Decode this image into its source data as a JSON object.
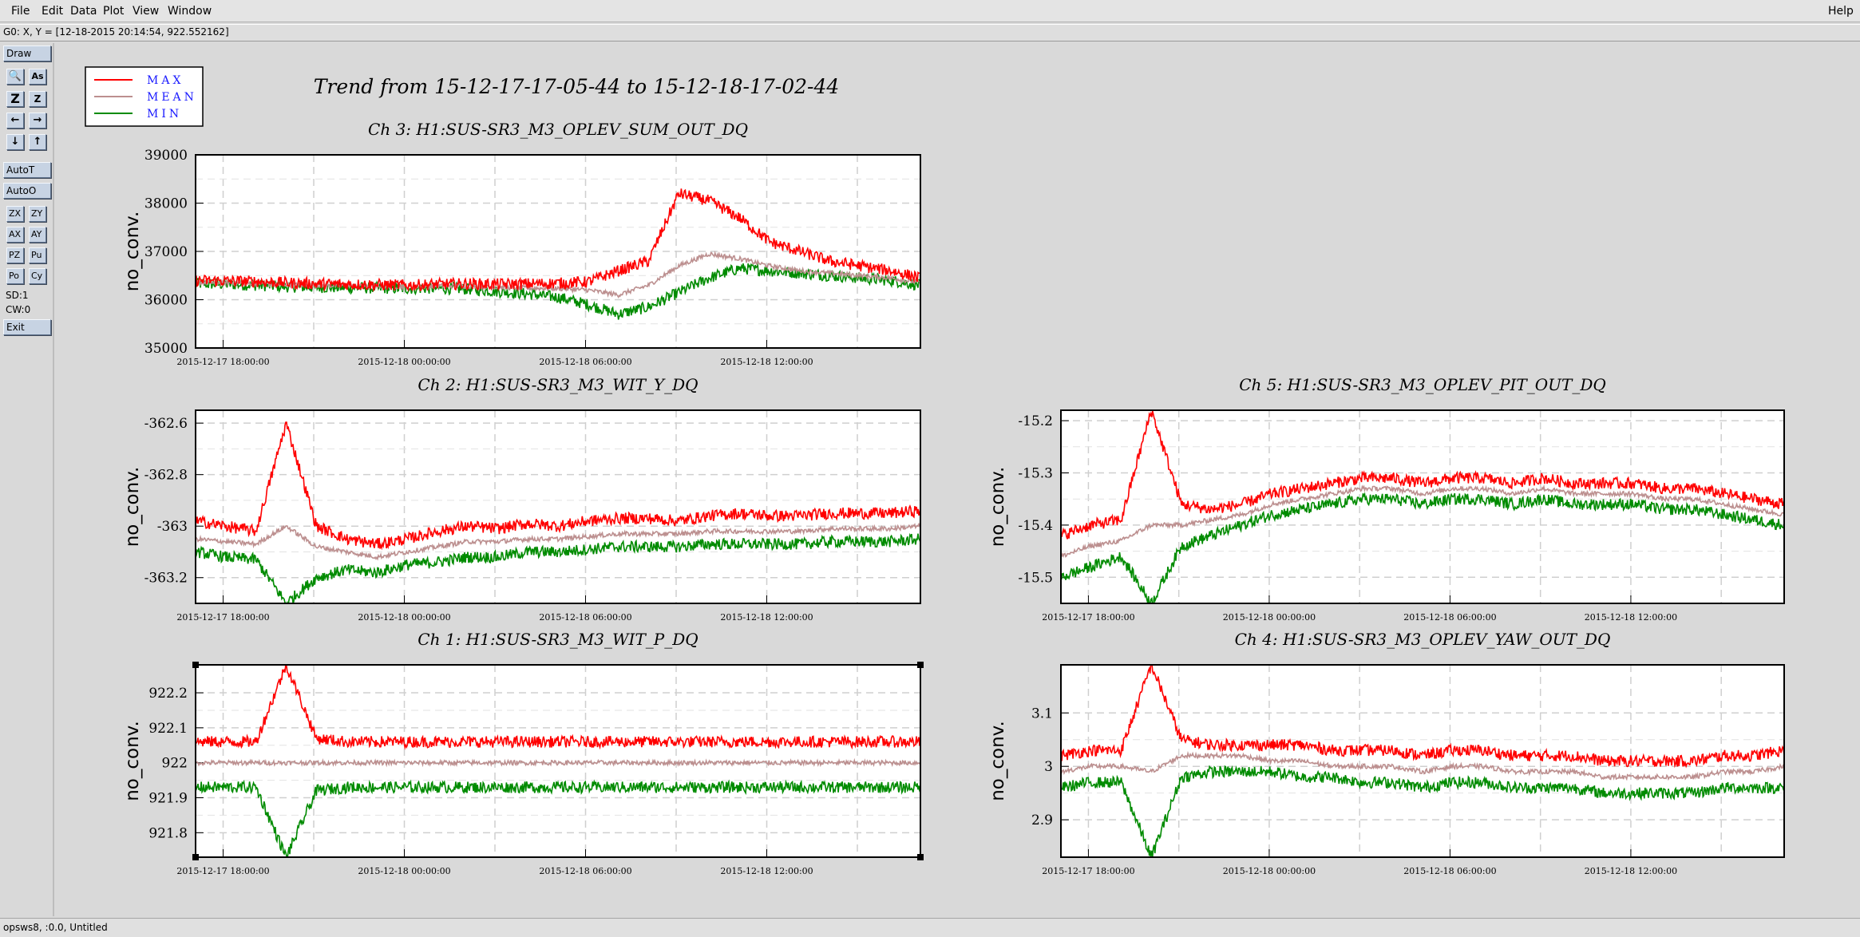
{
  "menu": {
    "items": [
      "File",
      "Edit",
      "Data",
      "Plot",
      "View",
      "Window"
    ],
    "help": "Help"
  },
  "coord_readout": "G0: X, Y = [12-18-2015 20:14:54, 922.552162]",
  "toolbar": {
    "draw": "Draw",
    "autot": "AutoT",
    "autoo": "AutoO",
    "zx": "ZX",
    "zy": "ZY",
    "ax": "AX",
    "ay": "AY",
    "pz": "PZ",
    "pu": "Pu",
    "po": "Po",
    "cy": "Cy",
    "sd": "SD:1",
    "cw": "CW:0",
    "exit": "Exit",
    "icon_zoom": "🔍",
    "icon_as": "As",
    "icon_zin": "Z",
    "icon_zout": "Z",
    "icon_left": "←",
    "icon_right": "→",
    "icon_down": "↓",
    "icon_up": "↑"
  },
  "status": "opsws8, :0.0, Untitled",
  "main_title": "Trend from 15-12-17-17-05-44 to 15-12-18-17-02-44",
  "colors": {
    "max": "#ff0000",
    "mean": "#bc8f8f",
    "min": "#008b00",
    "legend_text": "#1a1aff"
  },
  "legend": [
    "MAX",
    "MEAN",
    "MIN"
  ],
  "chart_data": [
    {
      "type": "line",
      "title": "Ch 3: H1:SUS-SR3_M3_OPLEV_SUM_OUT_DQ",
      "ylabel": "no_conv.",
      "x_ticks": [
        "2015-12-17 18:00:00",
        "2015-12-18 00:00:00",
        "2015-12-18 06:00:00",
        "2015-12-18 12:00:00"
      ],
      "y_ticks": [
        "39000",
        "38000",
        "37000",
        "36000",
        "35000"
      ],
      "ylim": [
        35000,
        39000
      ],
      "grid": true,
      "legend_position": "top-left",
      "series": [
        {
          "name": "MAX",
          "x": [
            0,
            1,
            2,
            3,
            4,
            5,
            6,
            7,
            8,
            9,
            10,
            11,
            12,
            13,
            14,
            15,
            16,
            17,
            18,
            19,
            20,
            21,
            22,
            23,
            24
          ],
          "values": [
            36400,
            36390,
            36380,
            36350,
            36330,
            36320,
            36310,
            36300,
            36320,
            36330,
            36320,
            36330,
            36340,
            36370,
            36600,
            36800,
            38200,
            38050,
            37700,
            37200,
            37000,
            36800,
            36700,
            36600,
            36450
          ]
        },
        {
          "name": "MEAN",
          "x": [
            0,
            1,
            2,
            3,
            4,
            5,
            6,
            7,
            8,
            9,
            10,
            11,
            12,
            13,
            14,
            15,
            16,
            17,
            18,
            19,
            20,
            21,
            22,
            23,
            24
          ],
          "values": [
            36360,
            36350,
            36340,
            36310,
            36300,
            36290,
            36280,
            36270,
            36290,
            36280,
            36260,
            36240,
            36230,
            36200,
            36100,
            36300,
            36700,
            36950,
            36850,
            36700,
            36600,
            36550,
            36500,
            36450,
            36350
          ]
        },
        {
          "name": "MIN",
          "x": [
            0,
            1,
            2,
            3,
            4,
            5,
            6,
            7,
            8,
            9,
            10,
            11,
            12,
            13,
            14,
            15,
            16,
            17,
            18,
            19,
            20,
            21,
            22,
            23,
            24
          ],
          "values": [
            36330,
            36320,
            36300,
            36270,
            36260,
            36250,
            36240,
            36230,
            36240,
            36220,
            36170,
            36120,
            36050,
            35900,
            35700,
            35850,
            36150,
            36450,
            36650,
            36600,
            36550,
            36500,
            36450,
            36400,
            36300
          ]
        }
      ]
    },
    {
      "type": "line",
      "title": "Ch 2: H1:SUS-SR3_M3_WIT_Y_DQ",
      "ylabel": "no_conv.",
      "x_ticks": [
        "2015-12-17 18:00:00",
        "2015-12-18 00:00:00",
        "2015-12-18 06:00:00",
        "2015-12-18 12:00:00"
      ],
      "y_ticks": [
        "-362.6",
        "-362.8",
        "-363",
        "-363.2"
      ],
      "ylim": [
        -363.3,
        -362.55
      ],
      "grid": true,
      "series": [
        {
          "name": "MAX",
          "x": [
            0,
            1,
            2,
            3,
            4,
            5,
            6,
            7,
            8,
            9,
            10,
            11,
            12,
            13,
            14,
            15,
            16,
            17,
            18,
            19,
            20,
            21,
            22,
            23,
            24
          ],
          "values": [
            -362.98,
            -363.0,
            -363.02,
            -362.6,
            -363.0,
            -363.05,
            -363.07,
            -363.05,
            -363.02,
            -363.0,
            -363.01,
            -362.99,
            -363.0,
            -362.98,
            -362.97,
            -362.97,
            -362.98,
            -362.96,
            -362.95,
            -362.96,
            -362.96,
            -362.95,
            -362.95,
            -362.95,
            -362.94
          ]
        },
        {
          "name": "MEAN",
          "x": [
            0,
            1,
            2,
            3,
            4,
            5,
            6,
            7,
            8,
            9,
            10,
            11,
            12,
            13,
            14,
            15,
            16,
            17,
            18,
            19,
            20,
            21,
            22,
            23,
            24
          ],
          "values": [
            -363.05,
            -363.06,
            -363.07,
            -363.0,
            -363.08,
            -363.1,
            -363.12,
            -363.1,
            -363.08,
            -363.06,
            -363.06,
            -363.05,
            -363.05,
            -363.04,
            -363.03,
            -363.03,
            -363.03,
            -363.02,
            -363.02,
            -363.02,
            -363.02,
            -363.01,
            -363.01,
            -363.01,
            -363.0
          ]
        },
        {
          "name": "MIN",
          "x": [
            0,
            1,
            2,
            3,
            4,
            5,
            6,
            7,
            8,
            9,
            10,
            11,
            12,
            13,
            14,
            15,
            16,
            17,
            18,
            19,
            20,
            21,
            22,
            23,
            24
          ],
          "values": [
            -363.1,
            -363.12,
            -363.13,
            -363.3,
            -363.2,
            -363.17,
            -363.18,
            -363.15,
            -363.14,
            -363.12,
            -363.12,
            -363.1,
            -363.1,
            -363.09,
            -363.08,
            -363.08,
            -363.08,
            -363.07,
            -363.07,
            -363.07,
            -363.07,
            -363.06,
            -363.06,
            -363.06,
            -363.05
          ]
        }
      ]
    },
    {
      "type": "line",
      "title": "Ch 5: H1:SUS-SR3_M3_OPLEV_PIT_OUT_DQ",
      "ylabel": "no_conv.",
      "x_ticks": [
        "2015-12-17 18:00:00",
        "2015-12-18 00:00:00",
        "2015-12-18 06:00:00",
        "2015-12-18 12:00:00"
      ],
      "y_ticks": [
        "-15.2",
        "-15.3",
        "-15.4",
        "-15.5"
      ],
      "ylim": [
        -15.55,
        -15.18
      ],
      "grid": true,
      "series": [
        {
          "name": "MAX",
          "x": [
            0,
            1,
            2,
            3,
            4,
            5,
            6,
            7,
            8,
            9,
            10,
            11,
            12,
            13,
            14,
            15,
            16,
            17,
            18,
            19,
            20,
            21,
            22,
            23,
            24
          ],
          "values": [
            -15.42,
            -15.4,
            -15.39,
            -15.18,
            -15.36,
            -15.37,
            -15.36,
            -15.34,
            -15.33,
            -15.32,
            -15.31,
            -15.31,
            -15.32,
            -15.31,
            -15.31,
            -15.32,
            -15.31,
            -15.32,
            -15.32,
            -15.32,
            -15.33,
            -15.33,
            -15.34,
            -15.35,
            -15.36
          ]
        },
        {
          "name": "MEAN",
          "x": [
            0,
            1,
            2,
            3,
            4,
            5,
            6,
            7,
            8,
            9,
            10,
            11,
            12,
            13,
            14,
            15,
            16,
            17,
            18,
            19,
            20,
            21,
            22,
            23,
            24
          ],
          "values": [
            -15.46,
            -15.44,
            -15.43,
            -15.4,
            -15.4,
            -15.39,
            -15.38,
            -15.36,
            -15.35,
            -15.34,
            -15.33,
            -15.33,
            -15.34,
            -15.33,
            -15.33,
            -15.34,
            -15.33,
            -15.34,
            -15.34,
            -15.34,
            -15.35,
            -15.35,
            -15.36,
            -15.37,
            -15.38
          ]
        },
        {
          "name": "MIN",
          "x": [
            0,
            1,
            2,
            3,
            4,
            5,
            6,
            7,
            8,
            9,
            10,
            11,
            12,
            13,
            14,
            15,
            16,
            17,
            18,
            19,
            20,
            21,
            22,
            23,
            24
          ],
          "values": [
            -15.5,
            -15.48,
            -15.46,
            -15.55,
            -15.44,
            -15.42,
            -15.4,
            -15.38,
            -15.37,
            -15.36,
            -15.35,
            -15.35,
            -15.36,
            -15.35,
            -15.35,
            -15.36,
            -15.35,
            -15.36,
            -15.36,
            -15.36,
            -15.37,
            -15.37,
            -15.38,
            -15.39,
            -15.4
          ]
        }
      ]
    },
    {
      "type": "line",
      "title": "Ch 1: H1:SUS-SR3_M3_WIT_P_DQ",
      "ylabel": "no_conv.",
      "x_ticks": [
        "2015-12-17 18:00:00",
        "2015-12-18 00:00:00",
        "2015-12-18 06:00:00",
        "2015-12-18 12:00:00"
      ],
      "y_ticks": [
        "922.2",
        "922.1",
        "922",
        "921.9",
        "921.8"
      ],
      "ylim": [
        921.73,
        922.28
      ],
      "grid": true,
      "series": [
        {
          "name": "MAX",
          "x": [
            0,
            1,
            2,
            3,
            4,
            5,
            6,
            7,
            8,
            9,
            10,
            11,
            12,
            13,
            14,
            15,
            16,
            17,
            18,
            19,
            20,
            21,
            22,
            23,
            24
          ],
          "values": [
            922.06,
            922.06,
            922.06,
            922.28,
            922.07,
            922.06,
            922.06,
            922.06,
            922.06,
            922.06,
            922.06,
            922.06,
            922.06,
            922.06,
            922.06,
            922.06,
            922.06,
            922.06,
            922.06,
            922.06,
            922.06,
            922.06,
            922.06,
            922.06,
            922.06
          ]
        },
        {
          "name": "MEAN",
          "x": [
            0,
            1,
            2,
            3,
            4,
            5,
            6,
            7,
            8,
            9,
            10,
            11,
            12,
            13,
            14,
            15,
            16,
            17,
            18,
            19,
            20,
            21,
            22,
            23,
            24
          ],
          "values": [
            922.0,
            922.0,
            922.0,
            922.0,
            922.0,
            922.0,
            922.0,
            922.0,
            922.0,
            922.0,
            922.0,
            922.0,
            922.0,
            922.0,
            922.0,
            922.0,
            922.0,
            922.0,
            922.0,
            922.0,
            922.0,
            922.0,
            922.0,
            922.0,
            922.0
          ]
        },
        {
          "name": "MIN",
          "x": [
            0,
            1,
            2,
            3,
            4,
            5,
            6,
            7,
            8,
            9,
            10,
            11,
            12,
            13,
            14,
            15,
            16,
            17,
            18,
            19,
            20,
            21,
            22,
            23,
            24
          ],
          "values": [
            921.93,
            921.93,
            921.93,
            921.73,
            921.92,
            921.93,
            921.93,
            921.93,
            921.93,
            921.93,
            921.93,
            921.93,
            921.93,
            921.93,
            921.93,
            921.93,
            921.93,
            921.93,
            921.93,
            921.93,
            921.93,
            921.93,
            921.93,
            921.93,
            921.93
          ]
        }
      ]
    },
    {
      "type": "line",
      "title": "Ch 4: H1:SUS-SR3_M3_OPLEV_YAW_OUT_DQ",
      "ylabel": "no_conv.",
      "x_ticks": [
        "2015-12-17 18:00:00",
        "2015-12-18 00:00:00",
        "2015-12-18 06:00:00",
        "2015-12-18 12:00:00"
      ],
      "y_ticks": [
        "3.1",
        "3",
        "2.9"
      ],
      "ylim": [
        2.83,
        3.19
      ],
      "grid": true,
      "series": [
        {
          "name": "MAX",
          "x": [
            0,
            1,
            2,
            3,
            4,
            5,
            6,
            7,
            8,
            9,
            10,
            11,
            12,
            13,
            14,
            15,
            16,
            17,
            18,
            19,
            20,
            21,
            22,
            23,
            24
          ],
          "values": [
            3.02,
            3.03,
            3.03,
            3.19,
            3.05,
            3.04,
            3.04,
            3.04,
            3.04,
            3.03,
            3.03,
            3.03,
            3.02,
            3.03,
            3.03,
            3.02,
            3.02,
            3.02,
            3.01,
            3.01,
            3.01,
            3.01,
            3.02,
            3.02,
            3.03
          ]
        },
        {
          "name": "MEAN",
          "x": [
            0,
            1,
            2,
            3,
            4,
            5,
            6,
            7,
            8,
            9,
            10,
            11,
            12,
            13,
            14,
            15,
            16,
            17,
            18,
            19,
            20,
            21,
            22,
            23,
            24
          ],
          "values": [
            2.99,
            3.0,
            3.0,
            2.99,
            3.02,
            3.02,
            3.02,
            3.01,
            3.01,
            3.0,
            3.0,
            3.0,
            2.99,
            3.0,
            3.0,
            2.99,
            2.99,
            2.99,
            2.98,
            2.98,
            2.98,
            2.98,
            2.99,
            2.99,
            3.0
          ]
        },
        {
          "name": "MIN",
          "x": [
            0,
            1,
            2,
            3,
            4,
            5,
            6,
            7,
            8,
            9,
            10,
            11,
            12,
            13,
            14,
            15,
            16,
            17,
            18,
            19,
            20,
            21,
            22,
            23,
            24
          ],
          "values": [
            2.96,
            2.97,
            2.97,
            2.83,
            2.98,
            2.99,
            2.99,
            2.99,
            2.98,
            2.98,
            2.97,
            2.97,
            2.96,
            2.97,
            2.97,
            2.96,
            2.96,
            2.96,
            2.95,
            2.95,
            2.95,
            2.95,
            2.96,
            2.96,
            2.96
          ]
        }
      ]
    }
  ]
}
